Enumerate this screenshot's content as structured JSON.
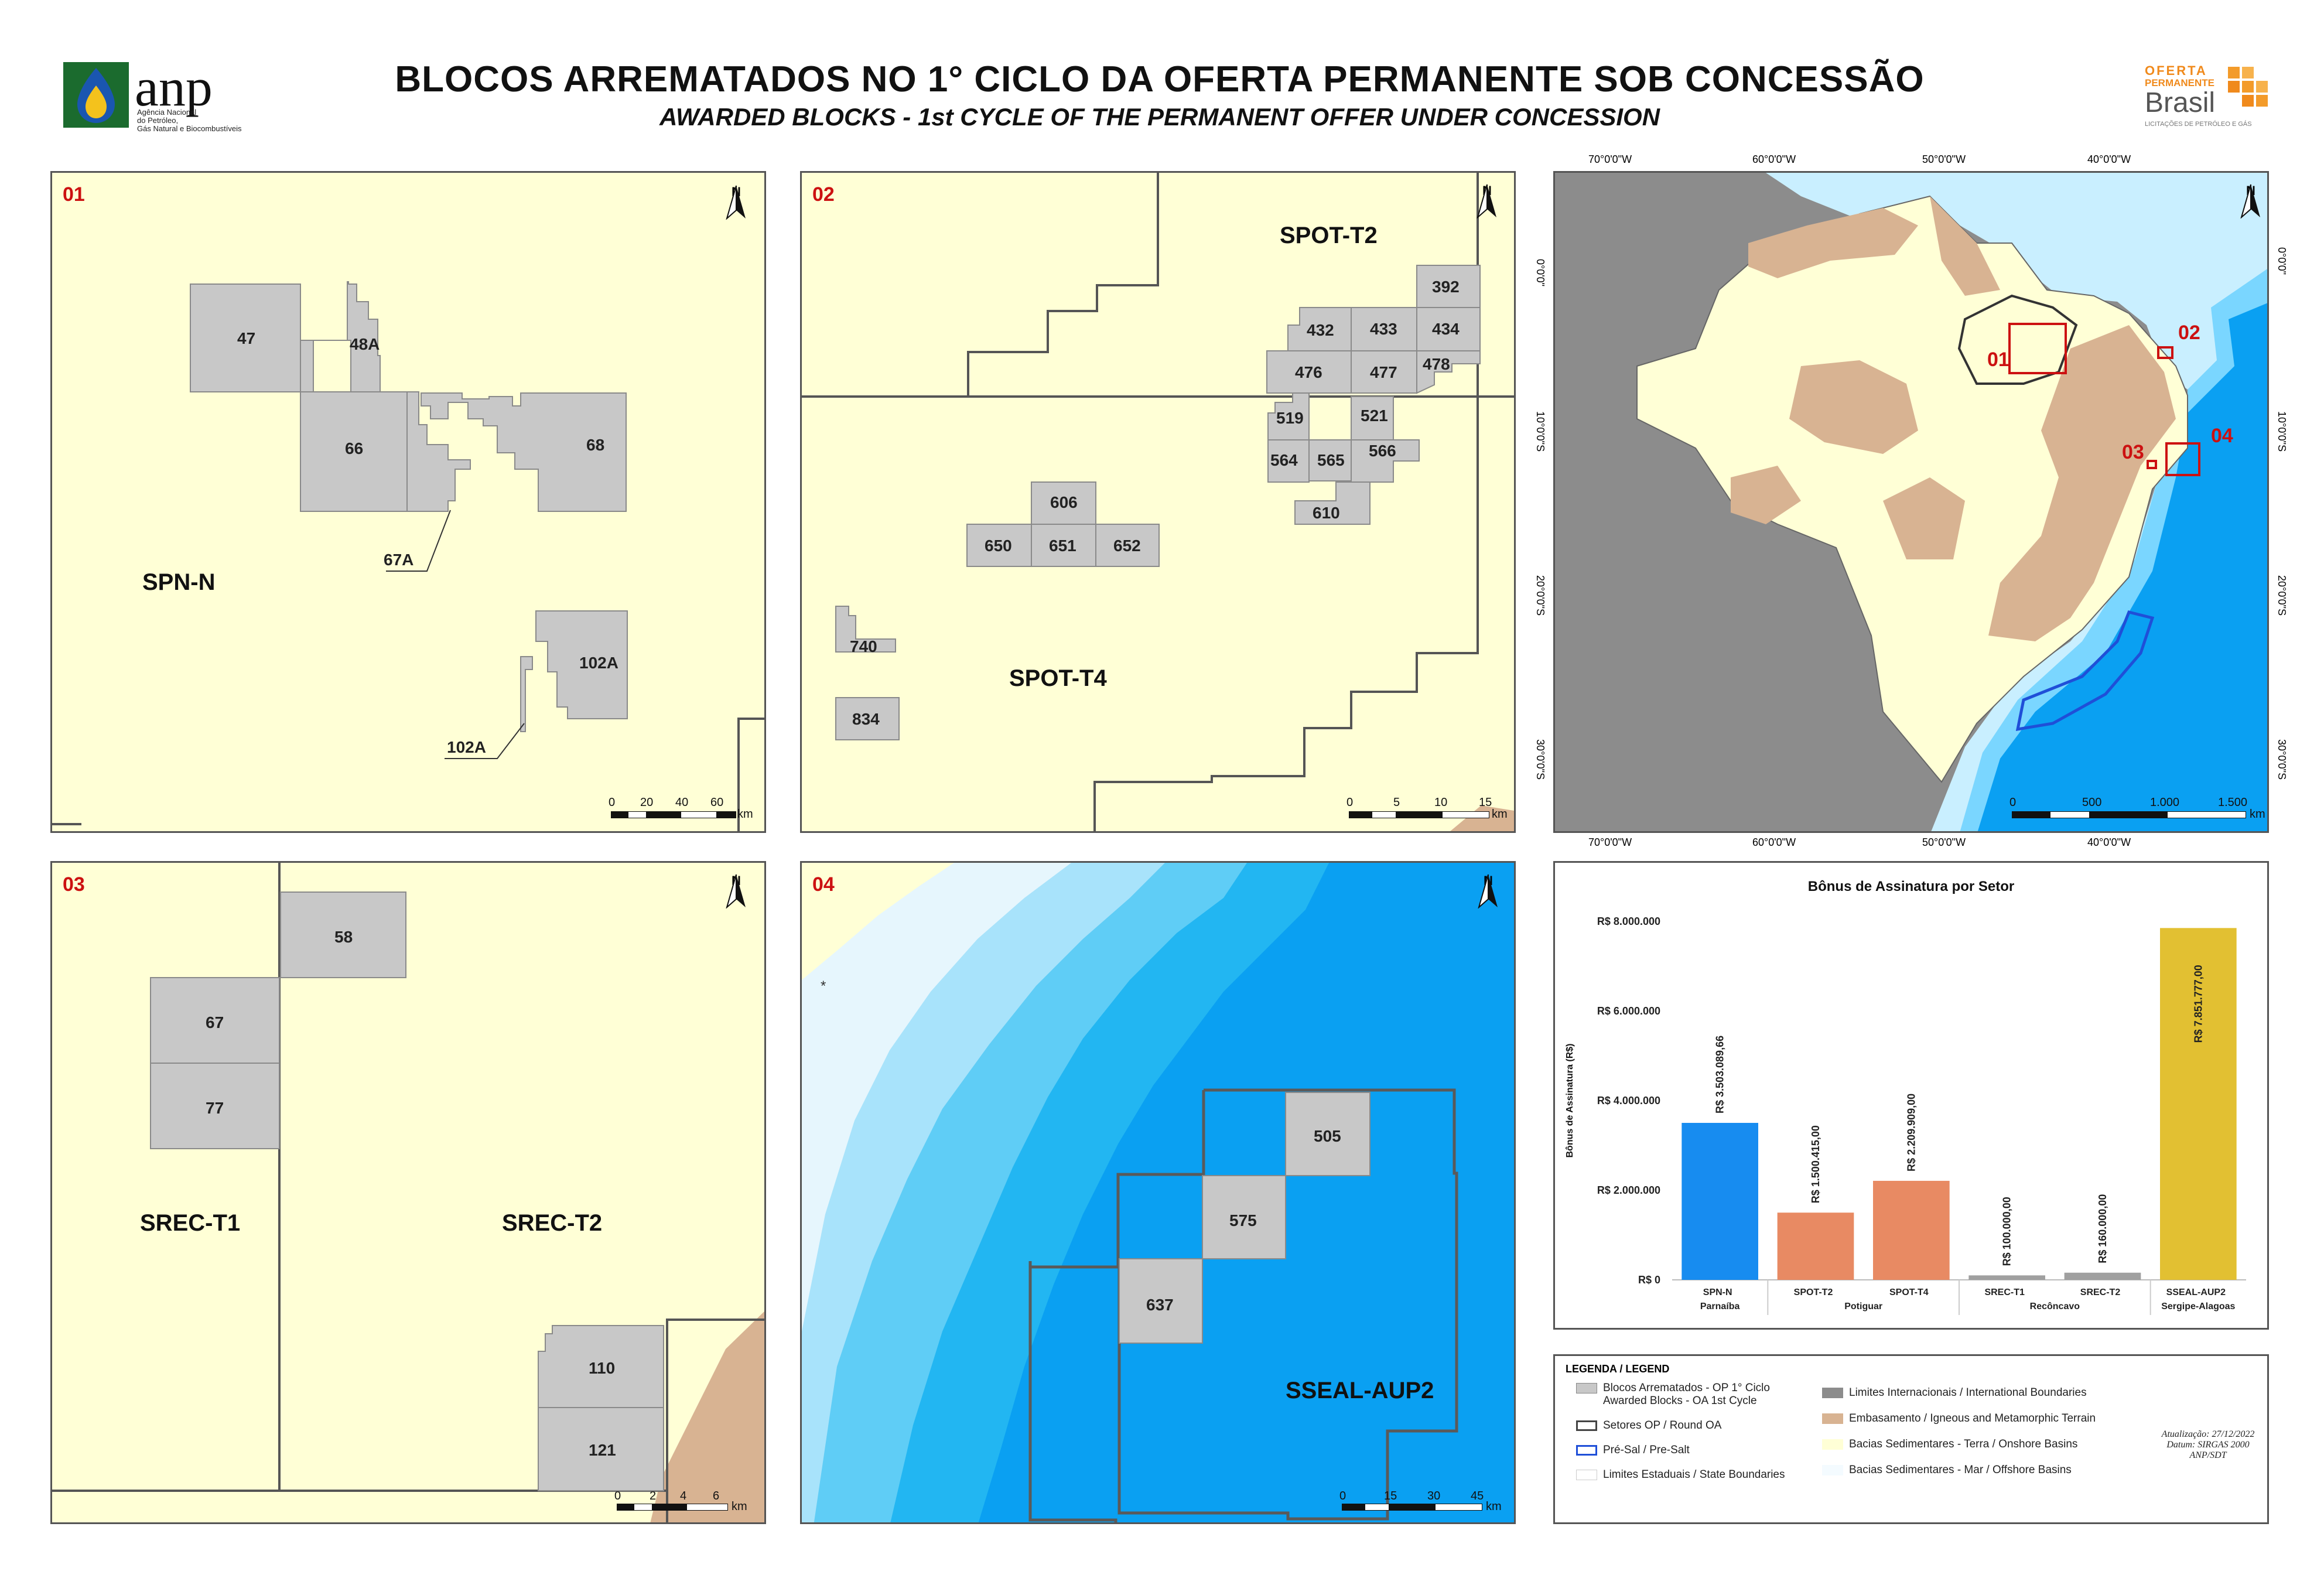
{
  "header": {
    "logo_left_name": "anp",
    "logo_left_sub1": "Agência Nacional",
    "logo_left_sub2": "do Petróleo,",
    "logo_left_sub3": "Gás Natural e Biocombustíveis",
    "title_pt": "BLOCOS ARREMATADOS NO 1° CICLO DA OFERTA PERMANENTE SOB CONCESSÃO",
    "title_en": "AWARDED BLOCKS - 1st CYCLE OF THE PERMANENT OFFER UNDER CONCESSION",
    "logo_right_line1": "OFERTA",
    "logo_right_line2": "PERMANENTE",
    "logo_right_line3": "Brasil",
    "logo_right_sub": "LICITAÇÕES DE PETRÓLEO E GÁS"
  },
  "colors": {
    "onshore": "#ffffd6",
    "block": "#c8c8c8",
    "ocean": "#0aa0f2",
    "basement": "#d8b392",
    "land_outside": "#8c8c8c",
    "accent_red": "#cc1111",
    "bar_blue": "#178cf0",
    "bar_orange": "#e88a63",
    "bar_grey": "#a0a0a0",
    "bar_yellow": "#e2c032"
  },
  "panels": {
    "p1": {
      "number": "01",
      "sector": "SPN-N",
      "blocks": [
        "47",
        "48A",
        "66",
        "68",
        "67A",
        "102A",
        "102A"
      ],
      "scale": [
        "0",
        "20",
        "40",
        "60"
      ],
      "unit": "km"
    },
    "p2": {
      "number": "02",
      "sectors": [
        "SPOT-T2",
        "SPOT-T4"
      ],
      "blocks": [
        "392",
        "432",
        "433",
        "434",
        "476",
        "477",
        "478",
        "519",
        "521",
        "564",
        "565",
        "566",
        "610",
        "606",
        "650",
        "651",
        "652",
        "740",
        "834"
      ],
      "scale": [
        "0",
        "5",
        "10",
        "15"
      ],
      "unit": "km"
    },
    "p3": {
      "number": "03",
      "sectors": [
        "SREC-T1",
        "SREC-T2"
      ],
      "blocks": [
        "58",
        "67",
        "77",
        "110",
        "121"
      ],
      "scale": [
        "0",
        "2",
        "4",
        "6"
      ],
      "unit": "km"
    },
    "p4": {
      "number": "04",
      "sector": "SSEAL-AUP2",
      "blocks": [
        "505",
        "575",
        "637"
      ],
      "scale": [
        "0",
        "15",
        "30",
        "45"
      ],
      "unit": "km"
    },
    "overview": {
      "lon_labels": [
        "70°0'0\"W",
        "60°0'0\"W",
        "50°0'0\"W",
        "40°0'0\"W"
      ],
      "lat_labels": [
        "0°0'0\"",
        "10°0'0\"S",
        "20°0'0\"S",
        "30°0'0\"S"
      ],
      "area_labels": [
        "01",
        "02",
        "03",
        "04"
      ],
      "scale": [
        "0",
        "500",
        "1.000",
        "1.500"
      ],
      "unit": "km"
    }
  },
  "north_label": "N",
  "chart_data": {
    "type": "bar",
    "title": "Bônus de Assinatura por Setor",
    "ylabel": "Bônus de Assinatura (R$)",
    "categories": [
      "SPN-N",
      "SPOT-T2",
      "SPOT-T4",
      "SREC-T1",
      "SREC-T2",
      "SSEAL-AUP2"
    ],
    "groups": [
      "Parnaíba",
      "Potiguar",
      "Potiguar",
      "Recôncavo",
      "Recôncavo",
      "Sergipe-Alagoas"
    ],
    "group_labels": [
      "Parnaíba",
      "Potiguar",
      "Recôncavo",
      "Sergipe-Alagoas"
    ],
    "values": [
      3503089.66,
      1500415.0,
      2209909.0,
      100000.0,
      160000.0,
      7851777.0
    ],
    "value_labels": [
      "R$ 3.503.089,66",
      "R$ 1.500.415,00",
      "R$ 2.209.909,00",
      "R$ 100.000,00",
      "R$ 160.000,00",
      "R$ 7.851.777,00"
    ],
    "colors": [
      "#178cf0",
      "#e88a63",
      "#e88a63",
      "#a0a0a0",
      "#a0a0a0",
      "#e2c032"
    ],
    "ylim": [
      0,
      8000000
    ],
    "yticks": [
      0,
      2000000,
      4000000,
      6000000,
      8000000
    ],
    "ytick_labels": [
      "R$ 0",
      "R$ 2.000.000",
      "R$ 4.000.000",
      "R$ 6.000.000",
      "R$ 8.000.000"
    ]
  },
  "legend": {
    "title": "LEGENDA / LEGEND",
    "items": [
      {
        "label": "Blocos Arrematados - OP 1° Ciclo",
        "label2": "Awarded Blocks - OA 1st Cycle"
      },
      {
        "label": "Setores OP / Round OA"
      },
      {
        "label": "Pré-Sal / Pre-Salt"
      },
      {
        "label": "Limites Estaduais / State Boundaries"
      },
      {
        "label": "Limites Internacionais / International Boundaries"
      },
      {
        "label": "Embasamento / Igneous and Metamorphic Terrain"
      },
      {
        "label": "Bacias Sedimentares - Terra / Onshore Basins"
      },
      {
        "label": "Bacias Sedimentares - Mar / Offshore Basins"
      }
    ],
    "stamp": [
      "Atualização: 27/12/2022",
      "Datum: SIRGAS 2000",
      "ANP/SDT"
    ]
  }
}
